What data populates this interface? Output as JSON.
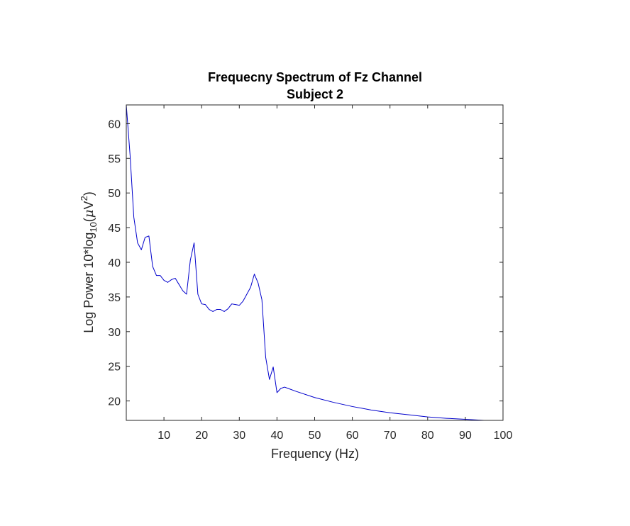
{
  "chart_data": {
    "type": "line",
    "title": "Frequecny Spectrum of Fz Channel",
    "subtitle": "Subject 2",
    "xlabel": "Frequency (Hz)",
    "ylabel": {
      "prefix": "Log Power 10*log",
      "subscript": "10",
      "open": "(",
      "mu": "μ",
      "unit": "V",
      "superscript": "2",
      "close": ")"
    },
    "xlim": [
      0,
      100
    ],
    "ylim": [
      17.2,
      62.7
    ],
    "xticks": [
      10,
      20,
      30,
      40,
      50,
      60,
      70,
      80,
      90,
      100
    ],
    "yticks": [
      20,
      25,
      30,
      35,
      40,
      45,
      50,
      55,
      60
    ],
    "grid": false,
    "series": [
      {
        "color": "#0000cc",
        "x": [
          0,
          1,
          2,
          3,
          4,
          5,
          6,
          7,
          8,
          9,
          10,
          11,
          12,
          13,
          14,
          15,
          16,
          17,
          18,
          19,
          20,
          21,
          22,
          23,
          24,
          25,
          26,
          27,
          28,
          29,
          30,
          31,
          32,
          33,
          34,
          35,
          36,
          37,
          38,
          39,
          40,
          41,
          42,
          43,
          45,
          50,
          55,
          60,
          65,
          70,
          75,
          80,
          85,
          90,
          95,
          100
        ],
        "y": [
          62.7,
          55.5,
          46.5,
          42.8,
          41.8,
          43.6,
          43.8,
          39.4,
          38.1,
          38.1,
          37.4,
          37.1,
          37.5,
          37.7,
          36.8,
          35.9,
          35.4,
          40.3,
          42.8,
          35.4,
          34.0,
          33.9,
          33.2,
          32.9,
          33.2,
          33.2,
          32.9,
          33.3,
          34.0,
          33.9,
          33.8,
          34.4,
          35.4,
          36.4,
          38.3,
          37.0,
          34.6,
          26.3,
          23.1,
          24.9,
          21.2,
          21.8,
          22.0,
          21.8,
          21.4,
          20.5,
          19.8,
          19.2,
          18.7,
          18.3,
          18.0,
          17.7,
          17.5,
          17.35,
          17.2,
          17.2
        ]
      }
    ]
  }
}
